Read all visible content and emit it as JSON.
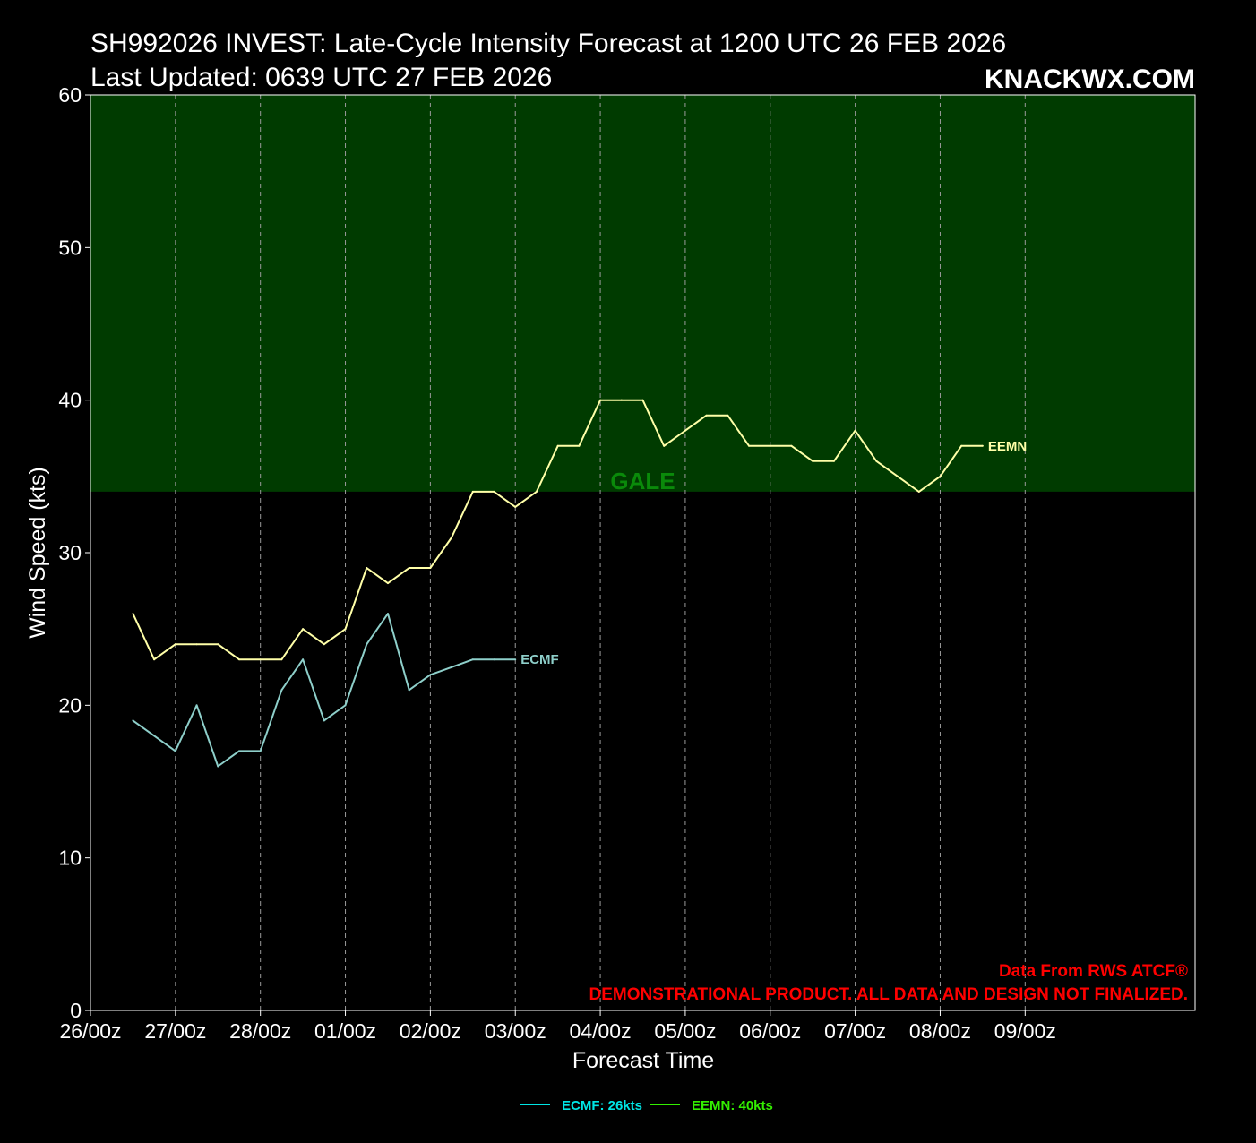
{
  "header": {
    "title_line1": "SH992026 INVEST: Late-Cycle Intensity Forecast at 1200 UTC 26 FEB 2026",
    "title_line2": "Last Updated: 0639 UTC 27 FEB 2026",
    "brand": "KNACKWX.COM"
  },
  "notes": {
    "source": "Data From RWS ATCF®",
    "disclaimer": "DEMONSTRATIONAL PRODUCT. ALL DATA AND DESIGN NOT FINALIZED."
  },
  "colors": {
    "background": "#000000",
    "gale_zone": "#003b00",
    "gale_text": "#0a8a0a",
    "ecmf": "#8ecfca",
    "eemn": "#ffffa8",
    "legend_ecmf": "#00e5e5",
    "legend_eemn": "#33ee00",
    "note": "#ff0000"
  },
  "chart_data": {
    "type": "line",
    "xlabel": "Forecast Time",
    "ylabel": "Wind Speed (kts)",
    "xlim_hours": [
      0,
      312
    ],
    "ylim": [
      0,
      60
    ],
    "x_ticks": [
      {
        "hour": 0,
        "label": "26/00z"
      },
      {
        "hour": 24,
        "label": "27/00z"
      },
      {
        "hour": 48,
        "label": "28/00z"
      },
      {
        "hour": 72,
        "label": "01/00z"
      },
      {
        "hour": 96,
        "label": "02/00z"
      },
      {
        "hour": 120,
        "label": "03/00z"
      },
      {
        "hour": 144,
        "label": "04/00z"
      },
      {
        "hour": 168,
        "label": "05/00z"
      },
      {
        "hour": 192,
        "label": "06/00z"
      },
      {
        "hour": 216,
        "label": "07/00z"
      },
      {
        "hour": 240,
        "label": "08/00z"
      },
      {
        "hour": 264,
        "label": "09/00z"
      }
    ],
    "y_ticks": [
      0,
      10,
      20,
      30,
      40,
      50,
      60
    ],
    "vertical_grid": "dashed",
    "threshold_zone": {
      "label": "GALE",
      "from": 34,
      "to": 60
    },
    "series": [
      {
        "name": "ECMF",
        "legend": "ECMF: 26kts",
        "times": [
          "26/12z",
          "26/18z",
          "27/00z",
          "27/06z",
          "27/12z",
          "27/18z",
          "28/00z",
          "28/06z",
          "28/12z",
          "28/18z",
          "01/00z",
          "01/06z",
          "01/12z",
          "01/18z",
          "02/00z",
          "02/06z",
          "02/12z",
          "02/18z",
          "03/00z"
        ],
        "x_hours": [
          12,
          18,
          24,
          30,
          36,
          42,
          48,
          54,
          60,
          66,
          72,
          78,
          84,
          90,
          96,
          102,
          108,
          114,
          120
        ],
        "values": [
          19,
          18,
          17,
          20,
          16,
          17,
          17,
          21,
          23,
          19,
          20,
          24,
          26,
          21,
          22,
          22.5,
          23,
          23,
          23
        ]
      },
      {
        "name": "EEMN",
        "legend": "EEMN: 40kts",
        "times": [
          "26/12z",
          "26/18z",
          "27/00z",
          "27/06z",
          "27/12z",
          "27/18z",
          "28/00z",
          "28/06z",
          "28/12z",
          "28/18z",
          "01/00z",
          "01/06z",
          "01/12z",
          "01/18z",
          "02/00z",
          "02/06z",
          "02/12z",
          "02/18z",
          "03/00z",
          "03/06z",
          "03/12z",
          "03/18z",
          "04/00z",
          "04/06z",
          "04/12z",
          "04/18z",
          "05/00z",
          "05/06z",
          "05/12z",
          "05/18z",
          "06/00z",
          "06/06z",
          "06/12z",
          "06/18z",
          "07/00z",
          "07/06z",
          "07/12z",
          "07/18z",
          "08/00z",
          "08/06z",
          "08/12z"
        ],
        "x_hours": [
          12,
          18,
          24,
          30,
          36,
          42,
          48,
          54,
          60,
          66,
          72,
          78,
          84,
          90,
          96,
          102,
          108,
          114,
          120,
          126,
          132,
          138,
          144,
          150,
          156,
          162,
          168,
          174,
          180,
          186,
          192,
          198,
          204,
          210,
          216,
          222,
          228,
          234,
          240,
          246,
          252
        ],
        "values": [
          26,
          23,
          24,
          24,
          24,
          23,
          23,
          23,
          25,
          24,
          25,
          29,
          28,
          29,
          29,
          31,
          34,
          34,
          33,
          34,
          37,
          37,
          40,
          40,
          40,
          37,
          38,
          39,
          39,
          37,
          37,
          37,
          36,
          36,
          38,
          36,
          35,
          34,
          35,
          37,
          37
        ]
      }
    ]
  }
}
